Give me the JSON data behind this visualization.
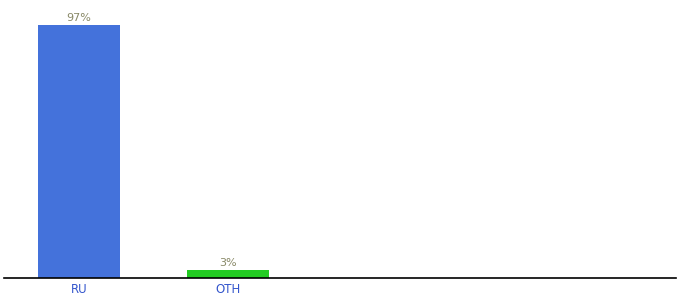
{
  "categories": [
    "RU",
    "OTH"
  ],
  "values": [
    97,
    3
  ],
  "bar_colors": [
    "#4472db",
    "#22cc22"
  ],
  "label_color": "#888866",
  "value_labels": [
    "97%",
    "3%"
  ],
  "ylim": [
    0,
    105
  ],
  "xlim": [
    -0.5,
    4.0
  ],
  "background_color": "#ffffff",
  "label_fontsize": 8,
  "tick_fontsize": 8.5,
  "bar_width": 0.55,
  "x_positions": [
    0,
    1
  ]
}
